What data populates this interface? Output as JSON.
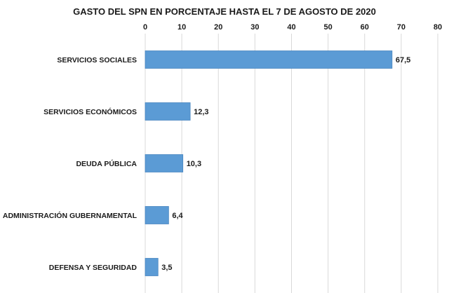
{
  "chart_data": {
    "type": "bar",
    "orientation": "horizontal",
    "title": "GASTO DEL SPN EN PORCENTAJE HASTA EL 7 DE AGOSTO DE 2020",
    "categories": [
      "SERVICIOS SOCIALES",
      "SERVICIOS ECONÓMICOS",
      "DEUDA PÚBLICA",
      "ADMINISTRACIÓN GUBERNAMENTAL",
      "DEFENSA Y SEGURIDAD"
    ],
    "values": [
      67.5,
      12.3,
      10.3,
      6.4,
      3.5
    ],
    "data_labels": [
      "67,5",
      "12,3",
      "10,3",
      "6,4",
      "3,5"
    ],
    "xaxis": {
      "position": "top",
      "ticks": [
        0,
        10,
        20,
        30,
        40,
        50,
        60,
        70,
        80
      ],
      "tick_labels": [
        "0",
        "10",
        "20",
        "30",
        "40",
        "50",
        "60",
        "70",
        "80"
      ]
    },
    "xlim": [
      0,
      80
    ],
    "xlabel": "",
    "ylabel": "",
    "grid": true,
    "legend": "none",
    "colors": {
      "bar_fill": "#5b9bd5",
      "bar_stroke": "#4a86c0",
      "gridline": "#d9d9d9",
      "text": "#1a1a1a"
    }
  }
}
